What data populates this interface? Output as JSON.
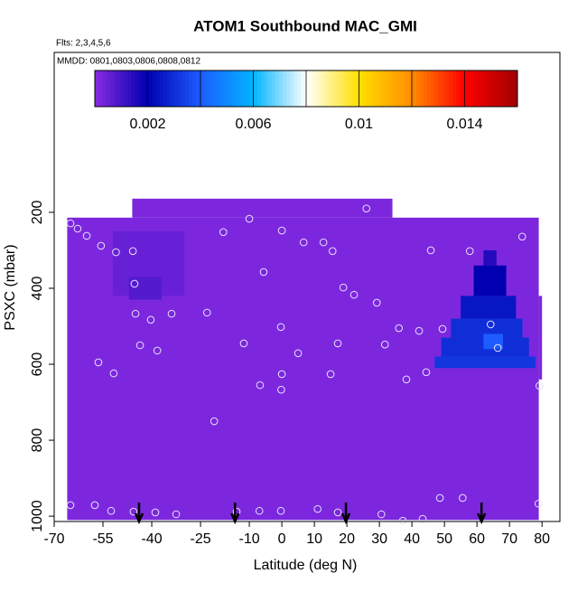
{
  "chart_data": {
    "type": "curtain",
    "title": "ATOM1 Southbound MAC_GMI",
    "subtitle": "Flts: 2,3,4,5,6",
    "annotation": "MMDD: 0801,0803,0806,0808,0812",
    "x_label": "Latitude (deg N)",
    "y_label": "PSXC (mbar)",
    "xlim": [
      -70,
      85.5
    ],
    "xticks": [
      -70,
      -55,
      -40,
      -25,
      -10,
      0,
      10,
      20,
      30,
      40,
      50,
      60,
      70,
      80
    ],
    "ylim": [
      1014,
      -221
    ],
    "yticks": [
      200,
      400,
      600,
      800,
      1000
    ],
    "clim": [
      0,
      0.016
    ],
    "cticks": [
      0.002,
      0.006,
      0.01,
      0.014
    ],
    "colorscale": [
      "#8a2be2",
      "#0000b0",
      "#1e5cff",
      "#00b4ff",
      "#ffffff",
      "#ffe000",
      "#ff8c00",
      "#ff0000",
      "#a00000"
    ],
    "cells": [
      {
        "lat": [
          -66,
          79
        ],
        "p": [
          214,
          1010
        ],
        "value": 0.0002
      },
      {
        "lat": [
          -46,
          34
        ],
        "p": [
          164,
          214
        ],
        "value": 0.0002
      },
      {
        "lat": [
          79,
          80
        ],
        "p": [
          420,
          640
        ],
        "value": 0.0002
      },
      {
        "lat": [
          -52,
          -30
        ],
        "p": [
          250,
          420
        ],
        "value": 0.0005
      },
      {
        "lat": [
          -47,
          -37
        ],
        "p": [
          370,
          430
        ],
        "value": 0.0008
      },
      {
        "lat": [
          62,
          66
        ],
        "p": [
          300,
          340
        ],
        "value": 0.0015
      },
      {
        "lat": [
          59,
          69
        ],
        "p": [
          340,
          420
        ],
        "value": 0.002
      },
      {
        "lat": [
          55,
          72
        ],
        "p": [
          420,
          480
        ],
        "value": 0.0025
      },
      {
        "lat": [
          52,
          74
        ],
        "p": [
          480,
          530
        ],
        "value": 0.003
      },
      {
        "lat": [
          49,
          76
        ],
        "p": [
          530,
          580
        ],
        "value": 0.003
      },
      {
        "lat": [
          47,
          78
        ],
        "p": [
          580,
          610
        ],
        "value": 0.0032
      },
      {
        "lat": [
          62,
          68
        ],
        "p": [
          520,
          560
        ],
        "value": 0.004
      }
    ],
    "points": {
      "lat": [
        -65,
        -62.8,
        -60,
        -55.6,
        -51,
        -45.8,
        -45.3,
        -45,
        -43.6,
        -38.3,
        -40.3,
        -33.9,
        -23,
        -18,
        -10,
        -5.6,
        0,
        6.7,
        12.8,
        15.6,
        18.9,
        22.2,
        26,
        29.2,
        36,
        42.2,
        45.8,
        49.4,
        57.8,
        64.2,
        66.4,
        73.9,
        79.2,
        -0.3,
        0,
        -0.2,
        -20.8,
        -11.7,
        -6.7,
        5,
        17.2,
        15,
        31.7,
        44.4,
        38.3,
        -56.4,
        -51.7,
        -65,
        -57.5,
        -52.5,
        -45.6,
        -38.9,
        -32.5,
        -13.9,
        -6.9,
        -0.3,
        11,
        17.2,
        30.6,
        48.6,
        55.6,
        78.9,
        43.3,
        37.2
      ],
      "pressure": [
        229,
        243,
        262,
        288,
        305,
        302,
        388,
        467,
        550,
        564,
        483,
        467,
        464,
        252,
        217,
        357,
        248,
        279,
        279,
        302,
        398,
        417,
        190,
        438,
        505,
        512,
        300,
        507,
        302,
        495,
        557,
        264,
        657,
        502,
        626,
        667,
        750,
        545,
        655,
        571,
        545,
        626,
        548,
        621,
        640,
        595,
        624,
        971,
        971,
        986,
        988,
        990,
        995,
        988,
        986,
        986,
        981,
        990,
        995,
        952,
        952,
        967,
        1007,
        1012
      ]
    },
    "arrows": [
      -43.9,
      -14.4,
      19.7,
      61.4
    ]
  }
}
